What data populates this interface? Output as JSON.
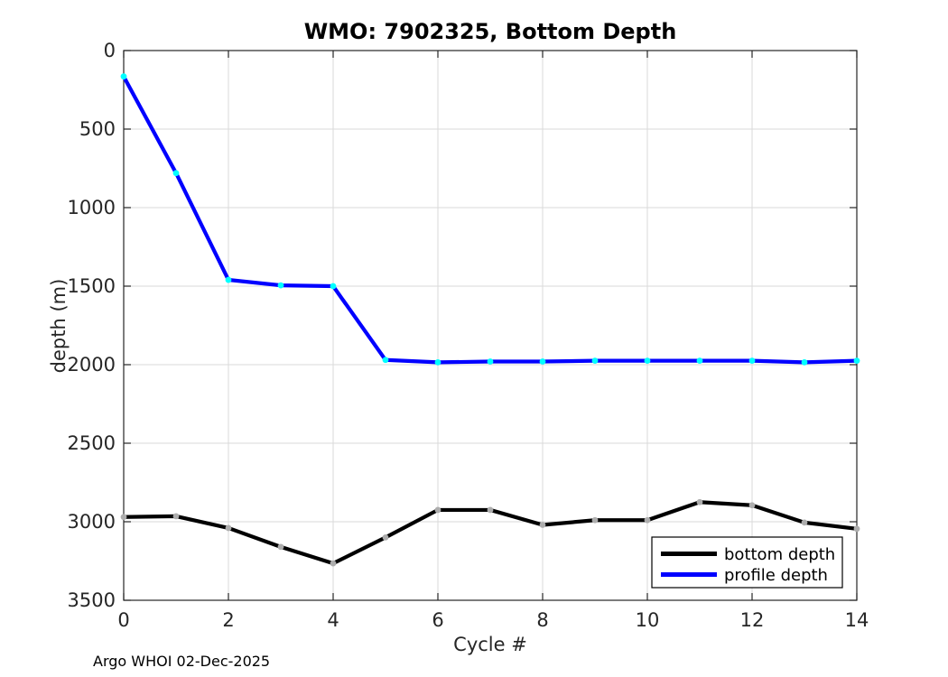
{
  "window": {
    "background": "#ffffff"
  },
  "footer": "Argo WHOI 02-Dec-2025",
  "colors": {
    "axis": "#262626",
    "grid": "#dadada",
    "title_text": "#000000",
    "legend_border": "#000000",
    "legend_background": "#ffffff"
  },
  "chart_data": {
    "type": "line",
    "title": "WMO: 7902325, Bottom Depth",
    "xlabel": "Cycle #",
    "ylabel": "depth (m)",
    "x": [
      0,
      1,
      2,
      3,
      4,
      5,
      6,
      7,
      8,
      9,
      10,
      11,
      12,
      13,
      14
    ],
    "xlim": [
      0,
      14
    ],
    "ylim": [
      0,
      3500
    ],
    "y_axis_inverted": true,
    "x_ticks": [
      0,
      2,
      4,
      6,
      8,
      10,
      12,
      14
    ],
    "y_ticks": [
      0,
      500,
      1000,
      1500,
      2000,
      2500,
      3000,
      3500
    ],
    "grid": true,
    "box": true,
    "tick_direction": "in",
    "legend_position": "inside-lower-right",
    "series": [
      {
        "name": "bottom depth",
        "color": "#000000",
        "marker": "square",
        "marker_color": "#adadad",
        "values": [
          2970,
          2965,
          3040,
          3160,
          3265,
          3100,
          2925,
          2925,
          3020,
          2990,
          2990,
          2875,
          2895,
          3005,
          3045
        ]
      },
      {
        "name": "profile depth",
        "color": "#0000ff",
        "marker": "square",
        "marker_color": "#00ffff",
        "values": [
          165,
          780,
          1460,
          1495,
          1500,
          1970,
          1985,
          1980,
          1980,
          1975,
          1975,
          1975,
          1975,
          1985,
          1975
        ]
      }
    ]
  }
}
